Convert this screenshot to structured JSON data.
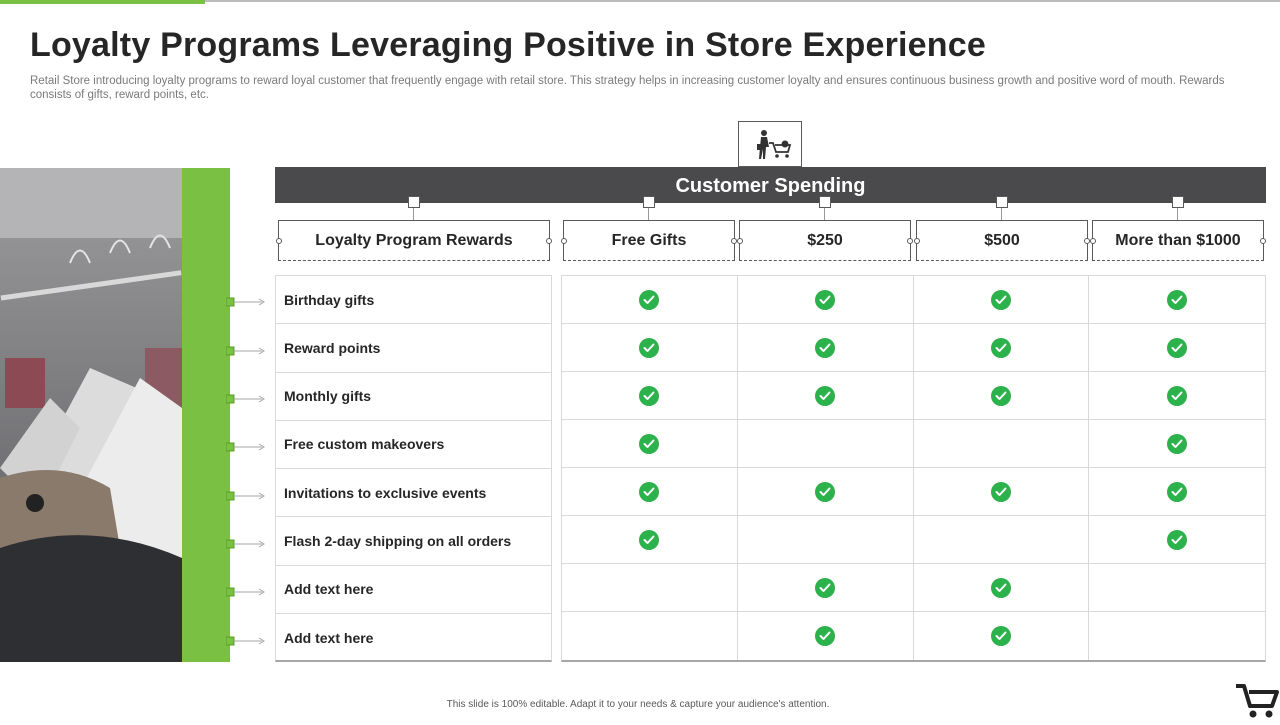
{
  "slide": {
    "title": "Loyalty Programs Leveraging Positive in Store Experience",
    "subtitle": "Retail Store introducing loyalty programs to reward loyal customer that frequently engage with retail store. This strategy helps in increasing customer loyalty and ensures continuous business growth and positive word of mouth. Rewards consists of gifts, reward points, etc.",
    "footer": "This slide is 100% editable.  Adapt it to your needs & capture your audience's attention."
  },
  "colors": {
    "accent_green": "#7ac143",
    "check_green": "#2bb24c",
    "banner_gray": "#4a4a4c"
  },
  "table": {
    "banner": "Customer Spending",
    "headers": [
      "Loyalty Program Rewards",
      "Free Gifts",
      "$250",
      "$500",
      "More than $1000"
    ],
    "rows": [
      {
        "label": "Birthday gifts",
        "checks": [
          true,
          true,
          true,
          true
        ]
      },
      {
        "label": "Reward points",
        "checks": [
          true,
          true,
          true,
          true
        ]
      },
      {
        "label": "Monthly gifts",
        "checks": [
          true,
          true,
          true,
          true
        ]
      },
      {
        "label": "Free custom makeovers",
        "checks": [
          true,
          false,
          false,
          true
        ]
      },
      {
        "label": "Invitations to exclusive events",
        "checks": [
          true,
          true,
          true,
          true
        ]
      },
      {
        "label": "Flash 2-day shipping on all orders",
        "checks": [
          true,
          false,
          false,
          true
        ]
      },
      {
        "label": "Add text here",
        "checks": [
          false,
          true,
          true,
          false
        ]
      },
      {
        "label": "Add text here",
        "checks": [
          false,
          true,
          true,
          false
        ]
      }
    ]
  },
  "icons": {
    "banner_icon": "shopper-with-cart-icon",
    "corner_icon": "shopping-cart-icon",
    "check_icon": "check-circle-icon"
  }
}
